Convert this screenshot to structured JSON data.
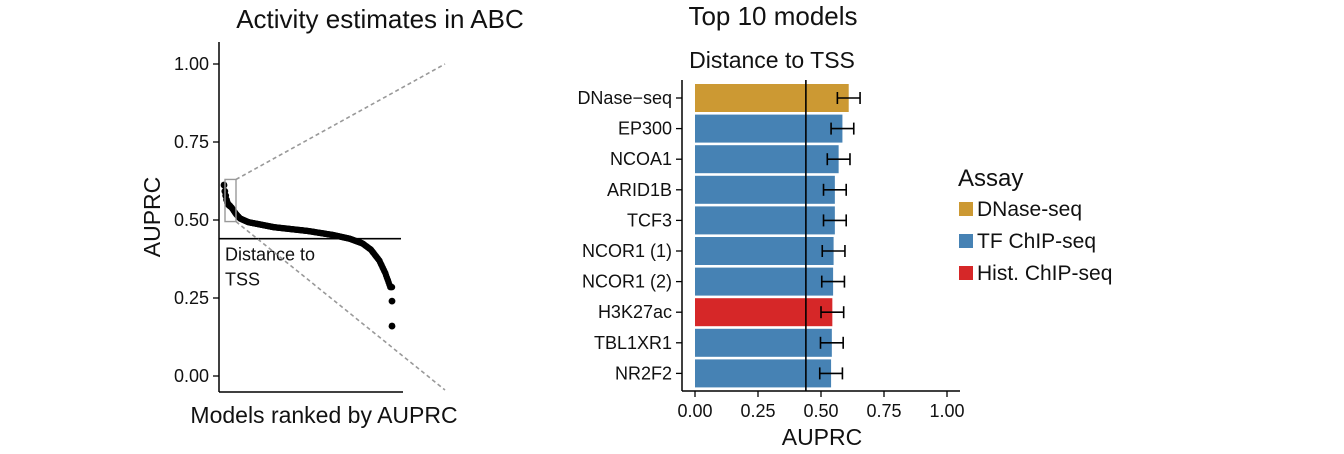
{
  "chart_data": [
    {
      "type": "scatter",
      "title": "Activity estimates in ABC",
      "xlabel": "Models ranked by AUPRC",
      "ylabel": "AUPRC",
      "ylim": [
        0,
        1.05
      ],
      "yticks": [
        "0.00",
        "0.25",
        "0.50",
        "0.75",
        "1.00"
      ],
      "reference_line": {
        "value": 0.44,
        "label": [
          "Distance to",
          "TSS"
        ]
      },
      "n_models": 200,
      "curve_profile": [
        {
          "rank": 1,
          "auprc": 0.612
        },
        {
          "rank": 2,
          "auprc": 0.592
        },
        {
          "rank": 3,
          "auprc": 0.578
        },
        {
          "rank": 4,
          "auprc": 0.565
        },
        {
          "rank": 5,
          "auprc": 0.556
        },
        {
          "rank": 6,
          "auprc": 0.55
        },
        {
          "rank": 8,
          "auprc": 0.545
        },
        {
          "rank": 10,
          "auprc": 0.54
        },
        {
          "rank": 15,
          "auprc": 0.52
        },
        {
          "rank": 20,
          "auprc": 0.505
        },
        {
          "rank": 30,
          "auprc": 0.493
        },
        {
          "rank": 60,
          "auprc": 0.477
        },
        {
          "rank": 100,
          "auprc": 0.465
        },
        {
          "rank": 130,
          "auprc": 0.452
        },
        {
          "rank": 150,
          "auprc": 0.44
        },
        {
          "rank": 165,
          "auprc": 0.425
        },
        {
          "rank": 175,
          "auprc": 0.405
        },
        {
          "rank": 185,
          "auprc": 0.37
        },
        {
          "rank": 192,
          "auprc": 0.33
        },
        {
          "rank": 196,
          "auprc": 0.3
        },
        {
          "rank": 198,
          "auprc": 0.285
        }
      ],
      "outliers": [
        0.24,
        0.16
      ],
      "grid": false
    },
    {
      "type": "bar",
      "orientation": "horizontal",
      "title": "Top 10 models",
      "subtitle": "Distance to TSS",
      "xlabel": "AUPRC",
      "xlim": [
        0,
        1
      ],
      "xticks": [
        "0.00",
        "0.25",
        "0.50",
        "0.75",
        "1.00"
      ],
      "reference_line": 0.44,
      "categories": [
        "DNase−seq",
        "EP300",
        "NCOA1",
        "ARID1B",
        "TCF3",
        "NCOR1 (1)",
        "NCOR1 (2)",
        "H3K27ac",
        "TBL1XR1",
        "NR2F2"
      ],
      "values": [
        0.61,
        0.585,
        0.57,
        0.555,
        0.555,
        0.55,
        0.548,
        0.545,
        0.543,
        0.54
      ],
      "error": [
        0.045,
        0.045,
        0.045,
        0.045,
        0.045,
        0.045,
        0.045,
        0.045,
        0.045,
        0.045
      ],
      "assay": [
        "DNase-seq",
        "TF ChIP-seq",
        "TF ChIP-seq",
        "TF ChIP-seq",
        "TF ChIP-seq",
        "TF ChIP-seq",
        "TF ChIP-seq",
        "Hist. ChIP-seq",
        "TF ChIP-seq",
        "TF ChIP-seq"
      ],
      "legend": {
        "title": "Assay",
        "placement": "right",
        "items": [
          {
            "label": "DNase-seq",
            "color": "#CC9933"
          },
          {
            "label": "TF ChIP-seq",
            "color": "#4682B4"
          },
          {
            "label": "Hist. ChIP-seq",
            "color": "#D62728"
          }
        ]
      },
      "grid": false
    }
  ]
}
